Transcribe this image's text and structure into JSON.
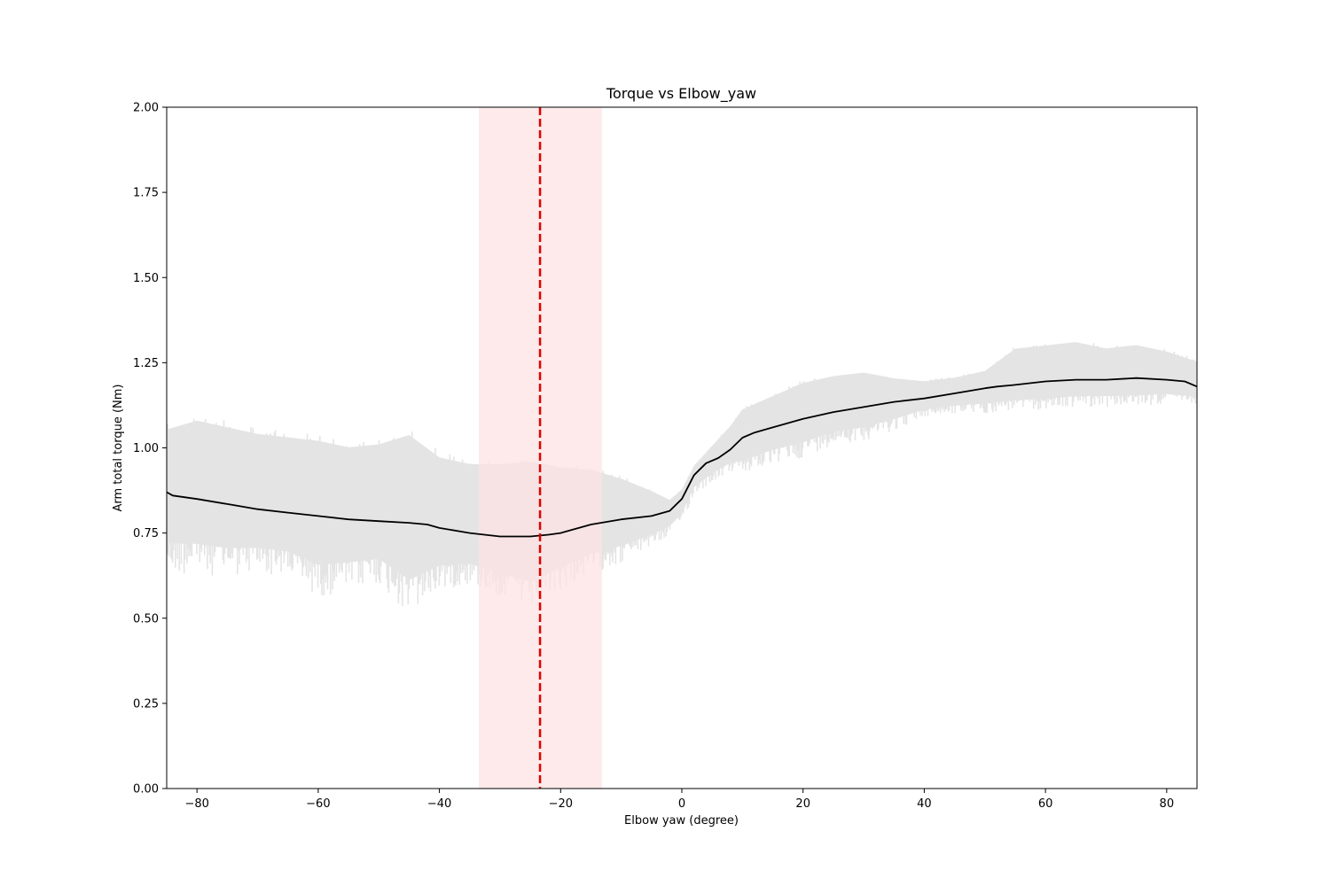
{
  "chart_data": {
    "type": "line",
    "title": "Torque vs Elbow_yaw",
    "xlabel": "Elbow yaw (degree)",
    "ylabel": "Arm total torque (Nm)",
    "xlim": [
      -85,
      85
    ],
    "ylim": [
      0.0,
      2.0
    ],
    "x_ticks": [
      -80,
      -60,
      -40,
      -20,
      0,
      20,
      40,
      60,
      80
    ],
    "x_tick_labels": [
      "−80",
      "−60",
      "−40",
      "−20",
      "0",
      "20",
      "40",
      "60",
      "80"
    ],
    "y_ticks": [
      0.0,
      0.25,
      0.5,
      0.75,
      1.0,
      1.25,
      1.5,
      1.75,
      2.0
    ],
    "y_tick_labels": [
      "0.00",
      "0.25",
      "0.50",
      "0.75",
      "1.00",
      "1.25",
      "1.50",
      "1.75",
      "2.00"
    ],
    "grid": false,
    "highlight_band": {
      "x_range": [
        -33.5,
        -13.2
      ],
      "color": "#fde3e3"
    },
    "reference_line": {
      "x": -23.4,
      "color": "#e00000",
      "style": "dashed"
    },
    "series": [
      {
        "kind": "raw-noisy-band",
        "color": "#e4e4e4",
        "x": [
          -85,
          -80,
          -75,
          -70,
          -65,
          -60,
          -55,
          -50,
          -45,
          -40,
          -35,
          -30,
          -25,
          -20,
          -15,
          -10,
          -5,
          -2,
          0,
          2,
          5,
          8,
          10,
          15,
          20,
          25,
          30,
          35,
          40,
          45,
          50,
          55,
          60,
          65,
          70,
          75,
          80,
          85
        ],
        "y_min": [
          0.62,
          0.63,
          0.62,
          0.63,
          0.62,
          0.56,
          0.58,
          0.6,
          0.5,
          0.58,
          0.6,
          0.56,
          0.52,
          0.58,
          0.63,
          0.66,
          0.71,
          0.74,
          0.78,
          0.86,
          0.9,
          0.93,
          0.92,
          0.95,
          0.97,
          1.01,
          1.02,
          1.05,
          1.09,
          1.1,
          1.1,
          1.11,
          1.11,
          1.12,
          1.12,
          1.12,
          1.13,
          1.13
        ],
        "y_max": [
          1.07,
          1.1,
          1.08,
          1.06,
          1.05,
          1.04,
          1.02,
          1.03,
          1.06,
          0.99,
          0.97,
          0.97,
          0.98,
          0.96,
          0.95,
          0.92,
          0.88,
          0.85,
          0.88,
          0.95,
          1.01,
          1.07,
          1.12,
          1.16,
          1.2,
          1.22,
          1.23,
          1.21,
          1.2,
          1.21,
          1.23,
          1.3,
          1.31,
          1.32,
          1.3,
          1.31,
          1.29,
          1.26
        ]
      },
      {
        "kind": "smoothed-trend",
        "color": "#000000",
        "x": [
          -85,
          -84,
          -80,
          -75,
          -70,
          -65,
          -60,
          -55,
          -50,
          -45,
          -42,
          -40,
          -35,
          -30,
          -28,
          -25,
          -22,
          -20,
          -15,
          -10,
          -5,
          -2,
          0,
          2,
          4,
          6,
          8,
          10,
          12,
          15,
          20,
          25,
          30,
          35,
          40,
          45,
          50,
          52,
          55,
          60,
          65,
          70,
          75,
          80,
          83,
          85
        ],
        "y": [
          0.87,
          0.86,
          0.85,
          0.835,
          0.82,
          0.81,
          0.8,
          0.79,
          0.785,
          0.78,
          0.775,
          0.765,
          0.75,
          0.74,
          0.74,
          0.74,
          0.745,
          0.75,
          0.775,
          0.79,
          0.8,
          0.815,
          0.85,
          0.92,
          0.955,
          0.97,
          0.995,
          1.03,
          1.045,
          1.06,
          1.085,
          1.105,
          1.12,
          1.135,
          1.145,
          1.16,
          1.175,
          1.18,
          1.185,
          1.195,
          1.2,
          1.2,
          1.205,
          1.2,
          1.195,
          1.18
        ]
      }
    ]
  }
}
